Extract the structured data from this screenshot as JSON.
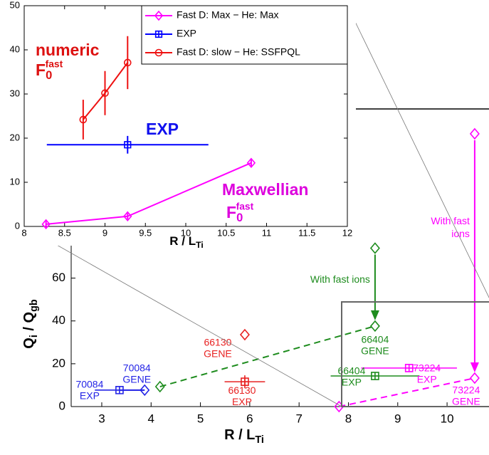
{
  "chart_data": [
    {
      "type": "scatter",
      "xlabel": [
        "R / L",
        "Ti"
      ],
      "ylabel": [
        "Q",
        "i",
        " / Q",
        "gb"
      ],
      "xlim": [
        2.38,
        10.85
      ],
      "ylim": [
        0,
        139
      ],
      "xticks": [
        3,
        4,
        5,
        6,
        7,
        8,
        9,
        10
      ],
      "yticks": [
        0,
        20,
        40,
        60
      ],
      "x": [
        3.87,
        3.36,
        4.18,
        8.54,
        8.54,
        8.54,
        5.9,
        5.9,
        7.81,
        10.56,
        10.56,
        9.23
      ],
      "values": [
        7.7,
        7.7,
        9.3,
        37.6,
        74,
        14.3,
        33.6,
        11.6,
        0,
        13.3,
        127.4,
        18
      ],
      "markers": [
        "diamond",
        "square",
        "diamond",
        "diamond",
        "diamond",
        "square",
        "diamond",
        "square",
        "diamond",
        "diamond",
        "diamond",
        "square"
      ],
      "colors": [
        "#2424e6",
        "#2424e6",
        "#1e8c1e",
        "#1e8c1e",
        "#1e8c1e",
        "#1e8c1e",
        "#e82222",
        "#e82222",
        "#ff00ff",
        "#ff00ff",
        "#ff00ff",
        "#ff00ff"
      ],
      "xerr": [
        null,
        0.5,
        null,
        null,
        null,
        0.9,
        null,
        0.41,
        null,
        null,
        null,
        0.97
      ],
      "yerr": [
        null,
        null,
        null,
        null,
        null,
        null,
        null,
        3,
        null,
        null,
        null,
        null
      ],
      "labels": [
        [
          "70084",
          "GENE"
        ],
        [
          "70084",
          "EXP"
        ],
        null,
        [
          "66404",
          "GENE"
        ],
        null,
        [
          "66404",
          "EXP"
        ],
        [
          "66130",
          "GENE"
        ],
        [
          "66130",
          "EXP"
        ],
        null,
        [
          "73224",
          "GENE"
        ],
        null,
        [
          "73224",
          "EXP"
        ]
      ],
      "links": [
        {
          "from": 1,
          "to": 0,
          "dashed": false
        },
        {
          "from": 2,
          "to": 3,
          "dashed": true
        },
        {
          "from": 8,
          "to": 9,
          "dashed": true
        }
      ],
      "arrows": [
        {
          "from": 4,
          "to": 3,
          "text": [
            "With fast ions"
          ]
        },
        {
          "from": 10,
          "to": 9,
          "text": [
            "With fast",
            "ions"
          ]
        }
      ]
    },
    {
      "type": "line",
      "xlabel": [
        "R / L",
        "Ti"
      ],
      "xlim": [
        8,
        12
      ],
      "ylim": [
        0,
        50
      ],
      "xticks": [
        8,
        8.5,
        9,
        9.5,
        10,
        10.5,
        11,
        11.5,
        12
      ],
      "yticks": [
        0,
        10,
        20,
        30,
        40,
        50
      ],
      "series": [
        {
          "name": "Fast D: Max − He: Max",
          "color": "#ff00ff",
          "marker": "diamond",
          "x": [
            8.27,
            9.28,
            10.81
          ],
          "values": [
            0.5,
            2.3,
            14.4
          ],
          "yerr": [
            0.7,
            0.7,
            0.7
          ]
        },
        {
          "name": "EXP",
          "color": "#0000ff",
          "marker": "square",
          "x": [
            9.28
          ],
          "values": [
            18.5
          ],
          "xerr": [
            1.0
          ],
          "yerr": [
            2
          ]
        },
        {
          "name": "Fast D: slow − He: SSFPQL",
          "color": "#ee1111",
          "marker": "circle",
          "x": [
            8.73,
            9.0,
            9.28
          ],
          "values": [
            24.2,
            30.2,
            37.1
          ],
          "yerr": [
            4.5,
            5,
            6
          ]
        }
      ],
      "legend": "upper right",
      "annotations": [
        {
          "text": "numeric",
          "color": "#dd1111"
        },
        {
          "text": "F",
          "sub": "0",
          "sup": "fast",
          "color": "#dd1111"
        },
        {
          "text": "EXP",
          "color": "#1010ee"
        },
        {
          "text": "Maxwellian",
          "color": "#dd00dd"
        },
        {
          "text": "F",
          "sub": "0",
          "sup": "fast",
          "color": "#dd00dd"
        }
      ]
    }
  ]
}
